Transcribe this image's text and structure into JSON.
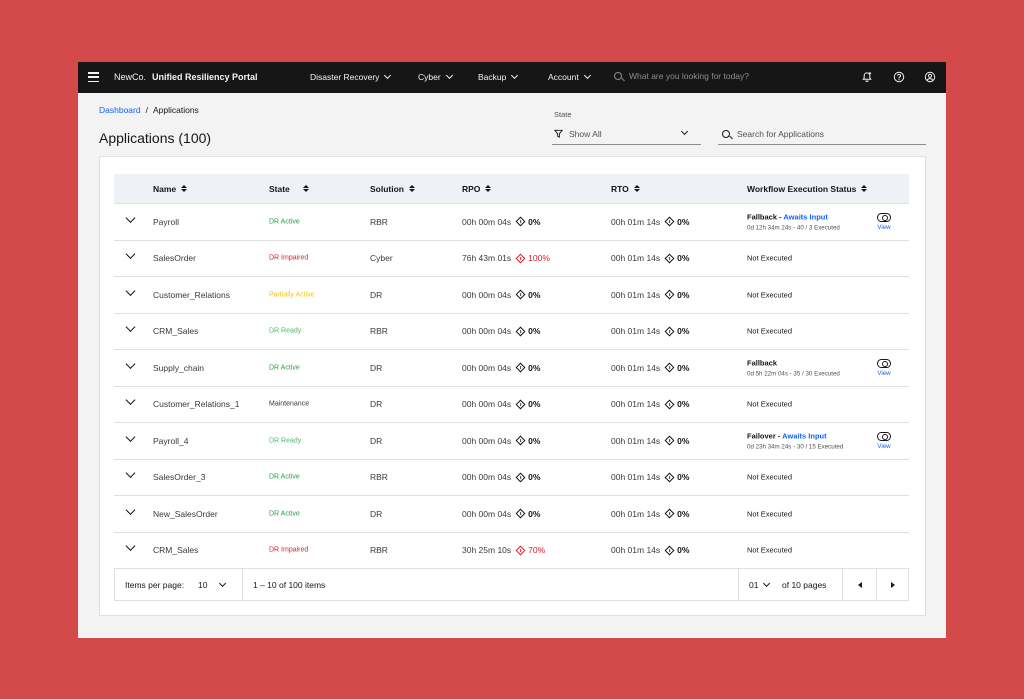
{
  "nav": {
    "brand": "NewCo.",
    "product": "Unified Resiliency Portal",
    "menus": [
      {
        "label": "Disaster Recovery"
      },
      {
        "label": "Cyber"
      },
      {
        "label": "Backup"
      },
      {
        "label": "Account"
      }
    ],
    "search_placeholder": "What are you looking for today?",
    "icons": [
      "notification-icon",
      "help-icon",
      "user-avatar-icon"
    ]
  },
  "breadcrumb": {
    "root": "Dashboard",
    "separator": "/",
    "current": "Applications"
  },
  "page_title": "Applications (100)",
  "filters": {
    "state_label": "State",
    "state_value": "Show All",
    "search_placeholder": "Search for Applications"
  },
  "table": {
    "headers": [
      "Name",
      "State",
      "Solution",
      "RPO",
      "RTO",
      "Workflow Execution Status"
    ],
    "rows": [
      {
        "name": "Payroll",
        "state": "DR Active",
        "state_color": "#24a148",
        "solution": "RBR",
        "rpo": "00h 00m 04s",
        "rpo_pct": "0%",
        "rpo_alert": false,
        "rto": "00h 01m 14s",
        "rto_pct": "0%",
        "wf_action": "Fallback",
        "wf_sep": " - ",
        "wf_status": "Awaits Input",
        "wf_detail": "0d 12h 34m 24s - 40 / 3 Executed",
        "view": "View"
      },
      {
        "name": "SalesOrder",
        "state": "DR Impaired",
        "state_color": "#da1e28",
        "solution": "Cyber",
        "rpo": "76h 43m 01s",
        "rpo_pct": "100%",
        "rpo_alert": true,
        "rto": "00h 01m 14s",
        "rto_pct": "0%",
        "wf_plain": "Not Executed"
      },
      {
        "name": "Customer_Relations",
        "state": "Partially Active",
        "state_color": "#f1c21b",
        "solution": "DR",
        "rpo": "00h 00m 04s",
        "rpo_pct": "0%",
        "rpo_alert": false,
        "rto": "00h 01m 14s",
        "rto_pct": "0%",
        "wf_plain": "Not Executed"
      },
      {
        "name": "CRM_Sales",
        "state": "DR Ready",
        "state_color": "#42be65",
        "solution": "RBR",
        "rpo": "00h 00m 04s",
        "rpo_pct": "0%",
        "rpo_alert": false,
        "rto": "00h 01m 14s",
        "rto_pct": "0%",
        "wf_plain": "Not Executed"
      },
      {
        "name": "Supply_chain",
        "state": "DR Active",
        "state_color": "#24a148",
        "solution": "DR",
        "rpo": "00h 00m 04s",
        "rpo_pct": "0%",
        "rpo_alert": false,
        "rto": "00h 01m 14s",
        "rto_pct": "0%",
        "wf_action": "Fallback",
        "wf_sep": "",
        "wf_status": "",
        "wf_detail": "0d 5h 22m 04s - 35 / 30 Executed",
        "view": "View"
      },
      {
        "name": "Customer_Relations_1",
        "state": "Maintenance",
        "state_color": "#393939",
        "solution": "DR",
        "rpo": "00h 00m 04s",
        "rpo_pct": "0%",
        "rpo_alert": false,
        "rto": "00h 01m 14s",
        "rto_pct": "0%",
        "wf_plain": "Not Executed"
      },
      {
        "name": "Payroll_4",
        "state": "DR Ready",
        "state_color": "#42be65",
        "solution": "DR",
        "rpo": "00h 00m 04s",
        "rpo_pct": "0%",
        "rpo_alert": false,
        "rto": "00h 01m 14s",
        "rto_pct": "0%",
        "wf_action": "Failover",
        "wf_sep": " - ",
        "wf_status": "Awaits Input",
        "wf_detail": "0d 23h 34m 24s - 30 / 15 Executed",
        "view": "View"
      },
      {
        "name": "SalesOrder_3",
        "state": "DR Active",
        "state_color": "#24a148",
        "solution": "RBR",
        "rpo": "00h 00m 04s",
        "rpo_pct": "0%",
        "rpo_alert": false,
        "rto": "00h 01m 14s",
        "rto_pct": "0%",
        "wf_plain": "Not Executed"
      },
      {
        "name": "New_SalesOrder",
        "state": "DR Active",
        "state_color": "#24a148",
        "solution": "DR",
        "rpo": "00h 00m 04s",
        "rpo_pct": "0%",
        "rpo_alert": false,
        "rto": "00h 01m 14s",
        "rto_pct": "0%",
        "wf_plain": "Not Executed"
      },
      {
        "name": "CRM_Sales",
        "state": "DR Impaired",
        "state_color": "#da1e28",
        "solution": "RBR",
        "rpo": "30h 25m 10s",
        "rpo_pct": "70%",
        "rpo_alert": true,
        "rto": "00h 01m 14s",
        "rto_pct": "0%",
        "wf_plain": "Not Executed"
      }
    ]
  },
  "pagination": {
    "items_per_page_label": "Items per page:",
    "items_per_page": "10",
    "range": "1 – 10 of 100 items",
    "page": "01",
    "of_pages": "of 10 pages"
  },
  "colors": {
    "background": "#d44a4b",
    "nav": "#161616",
    "link": "#0f62fe",
    "alert": "#da1e28"
  }
}
